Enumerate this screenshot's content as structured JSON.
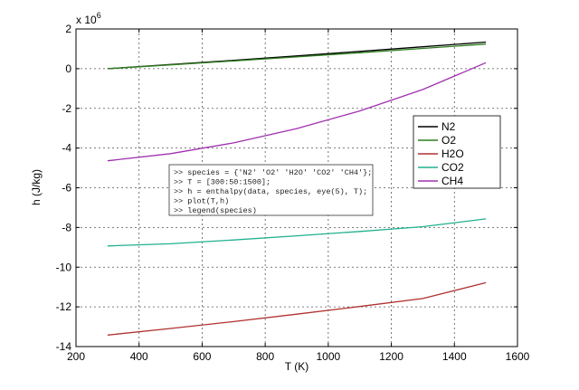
{
  "chart_data": {
    "type": "line",
    "title": "",
    "xlabel": "T (K)",
    "ylabel": "h (J/kg)",
    "y_multiplier_label": "x 10",
    "y_multiplier_exponent": "6",
    "xlim": [
      200,
      1600
    ],
    "ylim": [
      -14,
      2
    ],
    "x_ticks": [
      200,
      400,
      600,
      800,
      1000,
      1200,
      1400,
      1600
    ],
    "y_ticks": [
      -14,
      -12,
      -10,
      -8,
      -6,
      -4,
      -2,
      0,
      2
    ],
    "grid": true,
    "legend_position": "right",
    "x": [
      300,
      500,
      700,
      900,
      1100,
      1300,
      1500
    ],
    "series": [
      {
        "name": "N2",
        "color": "#000000",
        "values": [
          0.0,
          0.21,
          0.42,
          0.64,
          0.87,
          1.1,
          1.34
        ]
      },
      {
        "name": "O2",
        "color": "#2e7d1e",
        "values": [
          0.0,
          0.19,
          0.39,
          0.59,
          0.8,
          1.02,
          1.24
        ]
      },
      {
        "name": "H2O",
        "color": "#b03030",
        "values": [
          -13.42,
          -13.09,
          -12.74,
          -12.37,
          -11.98,
          -11.58,
          -10.78
        ]
      },
      {
        "name": "CO2",
        "color": "#20b090",
        "values": [
          -8.93,
          -8.82,
          -8.63,
          -8.42,
          -8.2,
          -7.96,
          -7.57
        ]
      },
      {
        "name": "CH4",
        "color": "#a030b0",
        "values": [
          -4.64,
          -4.28,
          -3.74,
          -3.02,
          -2.13,
          -1.05,
          0.3
        ]
      }
    ],
    "annotation_lines": [
      ">> species = {'N2' 'O2' 'H2O' 'CO2' 'CH4'};",
      ">> T = [300:50:1500];",
      ">> h = enthalpy(data, species, eye(5), T);",
      ">> plot(T,h)",
      ">> legend(species)"
    ]
  }
}
